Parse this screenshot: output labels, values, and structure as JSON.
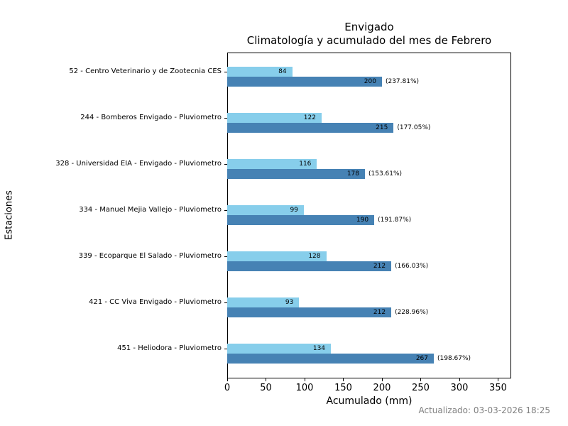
{
  "chart_data": {
    "type": "bar",
    "orientation": "horizontal",
    "title": "Envigado",
    "subtitle": "Climatología y acumulado del mes de Febrero",
    "xlabel": "Acumulado (mm)",
    "ylabel": "Estaciones",
    "xlim": [
      0,
      367
    ],
    "xticks": [
      0,
      50,
      100,
      150,
      200,
      250,
      300,
      350
    ],
    "grid": false,
    "legend": "none",
    "categories": [
      "52 - Centro Veterinario y de Zootecnia CES",
      "244 - Bomberos Envigado - Pluviometro",
      "328 - Universidad EIA - Envigado - Pluviometro",
      "334 - Manuel Mejia Vallejo - Pluviometro",
      "339 - Ecoparque El Salado - Pluviometro",
      "421 - CC Viva Envigado - Pluviometro",
      "451 - Heliodora - Pluviometro"
    ],
    "series": [
      {
        "name": "Climatología",
        "color": "#87CEEB",
        "values": [
          84,
          122,
          116,
          99,
          128,
          93,
          134
        ]
      },
      {
        "name": "Acumulado",
        "color": "#4682B4",
        "values": [
          200,
          215,
          178,
          190,
          212,
          212,
          267
        ],
        "percent_labels": [
          "(237.81%)",
          "(177.05%)",
          "(153.61%)",
          "(191.87%)",
          "(166.03%)",
          "(228.96%)",
          "(198.67%)"
        ]
      }
    ],
    "footer": "Actualizado: 03-03-2026 18:25",
    "footer_color": "#808080",
    "text_color": "#000000"
  }
}
